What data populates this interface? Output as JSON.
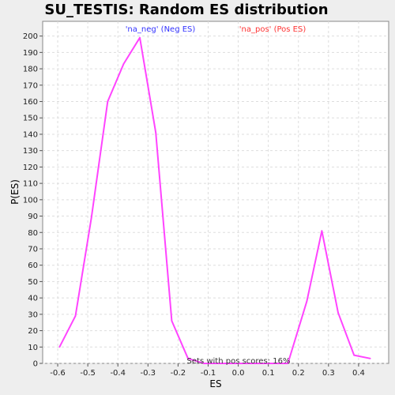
{
  "chart_data": {
    "type": "line",
    "title": "SU_TESTIS: Random ES distribution",
    "xlabel": "ES",
    "ylabel": "P(ES)",
    "xlim": [
      -0.65,
      0.5
    ],
    "ylim": [
      0,
      209
    ],
    "x_ticks": [
      -0.6,
      -0.5,
      -0.4,
      -0.3,
      -0.2,
      -0.1,
      0.0,
      0.1,
      0.2,
      0.3,
      0.4
    ],
    "x_tick_labels": [
      "-0.6",
      "-0.5",
      "-0.4",
      "-0.3",
      "-0.2",
      "-0.1",
      "0.0",
      "0.1",
      "0.2",
      "0.3",
      "0.4"
    ],
    "y_ticks": [
      0,
      10,
      20,
      30,
      40,
      50,
      60,
      70,
      80,
      90,
      100,
      110,
      120,
      130,
      140,
      150,
      160,
      170,
      180,
      190,
      200
    ],
    "grid": true,
    "legend": [
      {
        "label": "'na_neg' (Neg ES)",
        "color": "#3333ff"
      },
      {
        "label": "'na_pos' (Pos ES)",
        "color": "#ff3333"
      }
    ],
    "annotation": "Sets with pos scores: 16%",
    "series": [
      {
        "color": "#ff44ff",
        "x": [
          -0.594,
          -0.541,
          -0.488,
          -0.434,
          -0.381,
          -0.327,
          -0.274,
          -0.221,
          -0.167,
          -0.114,
          -0.061,
          -0.007,
          0.046,
          0.099,
          0.153,
          0.165,
          0.228,
          0.278,
          0.332,
          0.385,
          0.439
        ],
        "y": [
          10,
          29,
          89,
          160,
          183,
          199,
          141,
          26,
          3,
          0,
          0,
          0,
          0,
          0,
          0,
          0,
          38,
          81,
          31,
          5,
          3
        ]
      }
    ]
  }
}
